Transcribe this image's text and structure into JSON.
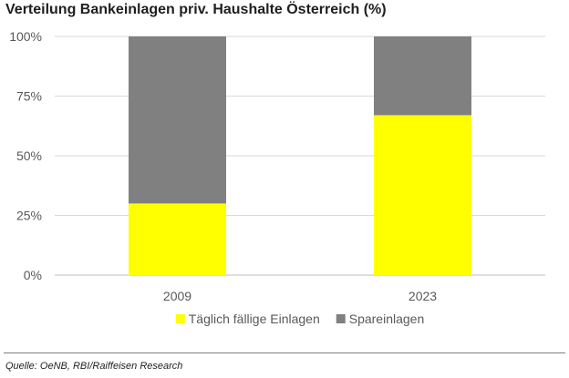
{
  "title": "Verteilung Bankeinlagen priv. Haushalte Österreich (%)",
  "source": "Quelle: OeNB, RBI/Raiffeisen Research",
  "chart_data": {
    "type": "bar",
    "stacked": true,
    "categories": [
      "2009",
      "2023"
    ],
    "series": [
      {
        "name": "Täglich fällige Einlagen",
        "values": [
          30,
          67
        ],
        "color": "#FFFF00"
      },
      {
        "name": "Spareinlagen",
        "values": [
          70,
          33
        ],
        "color": "#808080"
      }
    ],
    "ylim": [
      0,
      100
    ],
    "yticks": [
      0,
      25,
      50,
      75,
      100
    ],
    "ytick_labels": [
      "0%",
      "25%",
      "50%",
      "75%",
      "100%"
    ],
    "grid": true,
    "legend": "bottom"
  }
}
